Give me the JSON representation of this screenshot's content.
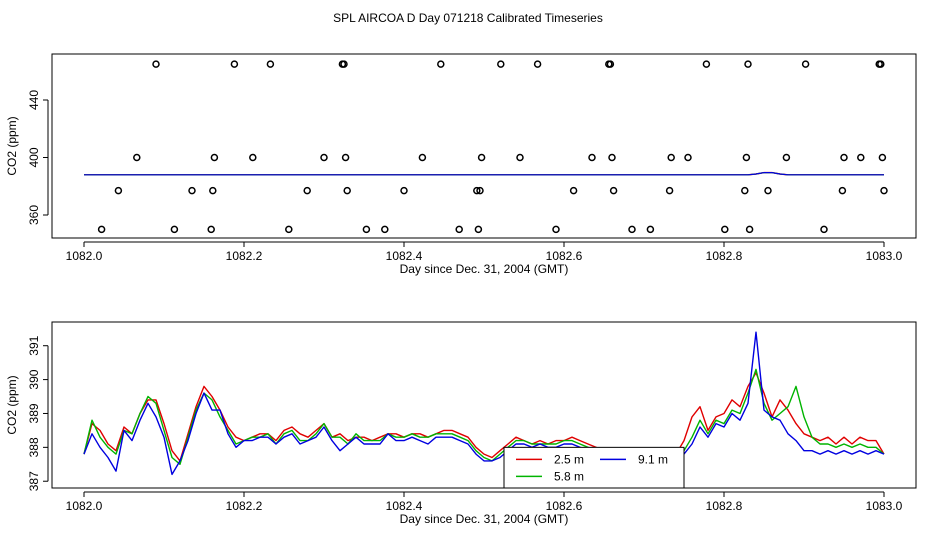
{
  "chart_data": {
    "title": "SPL AIRCOA D  Day 071218  Calibrated Timeseries",
    "series_colors": {
      "2.5 m": "#e00000",
      "5.8 m": "#00b400",
      "9.1 m": "#0000e0",
      "markers": "#000000"
    },
    "panels": [
      {
        "type": "scatter+line",
        "xlabel": "Day since Dec. 31, 2004 (GMT)",
        "ylabel": "CO2 (ppm)",
        "xlim": [
          1081.96,
          1083.04
        ],
        "ylim": [
          344,
          472
        ],
        "xticks": [
          "1082.0",
          "1082.2",
          "1082.4",
          "1082.6",
          "1082.8",
          "1083.0"
        ],
        "xtick_values": [
          1082.0,
          1082.2,
          1082.4,
          1082.6,
          1082.8,
          1083.0
        ],
        "yticks": [
          "360",
          "400",
          "440"
        ],
        "ytick_values": [
          360,
          400,
          440
        ],
        "markers_x": [
          1082.022,
          1082.043,
          1082.066,
          1082.09,
          1082.113,
          1082.135,
          1082.159,
          1082.161,
          1082.163,
          1082.188,
          1082.211,
          1082.233,
          1082.256,
          1082.279,
          1082.3,
          1082.323,
          1082.325,
          1082.327,
          1082.329,
          1082.353,
          1082.376,
          1082.4,
          1082.423,
          1082.446,
          1082.469,
          1082.491,
          1082.493,
          1082.495,
          1082.497,
          1082.521,
          1082.545,
          1082.567,
          1082.59,
          1082.612,
          1082.635,
          1082.656,
          1082.658,
          1082.66,
          1082.662,
          1082.685,
          1082.708,
          1082.732,
          1082.734,
          1082.755,
          1082.778,
          1082.801,
          1082.826,
          1082.828,
          1082.83,
          1082.832,
          1082.855,
          1082.878,
          1082.902,
          1082.925,
          1082.948,
          1082.95,
          1082.971,
          1082.994,
          1082.996,
          1082.998,
          1083.0
        ],
        "markers_y": [
          350,
          377,
          400,
          465,
          350,
          377,
          350,
          377,
          400,
          465,
          400,
          465,
          350,
          377,
          400,
          465,
          465,
          400,
          377,
          350,
          350,
          377,
          400,
          465,
          350,
          377,
          350,
          377,
          400,
          465,
          400,
          465,
          350,
          377,
          400,
          465,
          465,
          400,
          377,
          350,
          350,
          377,
          400,
          400,
          465,
          350,
          377,
          400,
          465,
          350,
          377,
          400,
          465,
          350,
          377,
          400,
          400,
          465,
          465,
          400,
          377
        ],
        "line_y": 388,
        "bump_x": 1082.855,
        "bump_y": 390
      },
      {
        "type": "line",
        "xlabel": "Day since Dec. 31, 2004 (GMT)",
        "ylabel": "CO2 (ppm)",
        "xlim": [
          1081.96,
          1083.04
        ],
        "ylim": [
          386.8,
          391.7
        ],
        "xticks": [
          "1082.0",
          "1082.2",
          "1082.4",
          "1082.6",
          "1082.8",
          "1083.0"
        ],
        "xtick_values": [
          1082.0,
          1082.2,
          1082.4,
          1082.6,
          1082.8,
          1083.0
        ],
        "yticks": [
          "387",
          "388",
          "389",
          "390",
          "391"
        ],
        "ytick_values": [
          387,
          388,
          389,
          390,
          391
        ],
        "legend_entries": [
          "2.5 m",
          "5.8 m",
          "9.1 m"
        ],
        "legend_location": "lower-center",
        "series": [
          {
            "name": "2.5 m",
            "x": [
              1082.0,
              1082.01,
              1082.02,
              1082.03,
              1082.04,
              1082.05,
              1082.06,
              1082.07,
              1082.08,
              1082.09,
              1082.1,
              1082.11,
              1082.12,
              1082.13,
              1082.14,
              1082.15,
              1082.16,
              1082.17,
              1082.18,
              1082.19,
              1082.2,
              1082.21,
              1082.22,
              1082.23,
              1082.24,
              1082.25,
              1082.26,
              1082.27,
              1082.28,
              1082.29,
              1082.3,
              1082.31,
              1082.32,
              1082.33,
              1082.34,
              1082.35,
              1082.36,
              1082.37,
              1082.38,
              1082.39,
              1082.4,
              1082.41,
              1082.42,
              1082.43,
              1082.44,
              1082.45,
              1082.46,
              1082.47,
              1082.48,
              1082.49,
              1082.5,
              1082.51,
              1082.52,
              1082.53,
              1082.54,
              1082.55,
              1082.56,
              1082.57,
              1082.58,
              1082.59,
              1082.6,
              1082.61,
              1082.62,
              1082.63,
              1082.64,
              1082.65,
              1082.66,
              1082.67,
              1082.68,
              1082.69,
              1082.7,
              1082.71,
              1082.72,
              1082.73,
              1082.74,
              1082.75,
              1082.76,
              1082.77,
              1082.78,
              1082.79,
              1082.8,
              1082.81,
              1082.82,
              1082.83,
              1082.84,
              1082.85,
              1082.86,
              1082.87,
              1082.88,
              1082.89,
              1082.9,
              1082.91,
              1082.92,
              1082.93,
              1082.94,
              1082.95,
              1082.96,
              1082.97,
              1082.98,
              1082.99,
              1083.0
            ],
            "values": [
              387.8,
              388.7,
              388.5,
              388.1,
              387.9,
              388.6,
              388.4,
              389.0,
              389.4,
              389.4,
              388.7,
              387.9,
              387.6,
              388.4,
              389.2,
              389.8,
              389.5,
              389.1,
              388.6,
              388.3,
              388.2,
              388.3,
              388.4,
              388.4,
              388.2,
              388.5,
              388.6,
              388.4,
              388.3,
              388.5,
              388.7,
              388.3,
              388.4,
              388.2,
              388.3,
              388.3,
              388.2,
              388.3,
              388.4,
              388.4,
              388.3,
              388.4,
              388.4,
              388.3,
              388.4,
              388.5,
              388.5,
              388.4,
              388.3,
              388.0,
              387.8,
              387.7,
              387.9,
              388.1,
              388.3,
              388.2,
              388.1,
              388.2,
              388.1,
              388.2,
              388.2,
              388.3,
              388.2,
              388.1,
              388.0,
              387.9,
              387.8,
              387.6,
              387.5,
              387.4,
              387.3,
              387.4,
              387.5,
              387.6,
              387.8,
              388.2,
              388.9,
              389.2,
              388.5,
              388.9,
              389.0,
              389.4,
              389.2,
              389.8,
              390.2,
              389.6,
              388.9,
              389.4,
              389.1,
              388.7,
              388.4,
              388.3,
              388.2,
              388.3,
              388.1,
              388.3,
              388.1,
              388.3,
              388.2,
              388.2,
              387.8
            ]
          },
          {
            "name": "5.8 m",
            "x": [
              1082.0,
              1082.01,
              1082.02,
              1082.03,
              1082.04,
              1082.05,
              1082.06,
              1082.07,
              1082.08,
              1082.09,
              1082.1,
              1082.11,
              1082.12,
              1082.13,
              1082.14,
              1082.15,
              1082.16,
              1082.17,
              1082.18,
              1082.19,
              1082.2,
              1082.21,
              1082.22,
              1082.23,
              1082.24,
              1082.25,
              1082.26,
              1082.27,
              1082.28,
              1082.29,
              1082.3,
              1082.31,
              1082.32,
              1082.33,
              1082.34,
              1082.35,
              1082.36,
              1082.37,
              1082.38,
              1082.39,
              1082.4,
              1082.41,
              1082.42,
              1082.43,
              1082.44,
              1082.45,
              1082.46,
              1082.47,
              1082.48,
              1082.49,
              1082.5,
              1082.51,
              1082.52,
              1082.53,
              1082.54,
              1082.55,
              1082.56,
              1082.57,
              1082.58,
              1082.59,
              1082.6,
              1082.61,
              1082.62,
              1082.63,
              1082.64,
              1082.65,
              1082.66,
              1082.67,
              1082.68,
              1082.69,
              1082.7,
              1082.71,
              1082.72,
              1082.73,
              1082.74,
              1082.75,
              1082.76,
              1082.77,
              1082.78,
              1082.79,
              1082.8,
              1082.81,
              1082.82,
              1082.83,
              1082.84,
              1082.85,
              1082.86,
              1082.87,
              1082.88,
              1082.89,
              1082.9,
              1082.91,
              1082.92,
              1082.93,
              1082.94,
              1082.95,
              1082.96,
              1082.97,
              1082.98,
              1082.99,
              1083.0
            ],
            "values": [
              387.8,
              388.8,
              388.3,
              388.0,
              387.8,
              388.5,
              388.4,
              389.0,
              389.5,
              389.3,
              388.5,
              387.7,
              387.5,
              388.3,
              389.1,
              389.6,
              389.4,
              388.9,
              388.5,
              388.1,
              388.2,
              388.3,
              388.3,
              388.4,
              388.1,
              388.4,
              388.5,
              388.2,
              388.2,
              388.4,
              388.7,
              388.3,
              388.3,
              388.1,
              388.4,
              388.2,
              388.2,
              388.2,
              388.4,
              388.3,
              388.3,
              388.4,
              388.3,
              388.3,
              388.4,
              388.4,
              388.4,
              388.3,
              388.2,
              387.9,
              387.7,
              387.6,
              387.8,
              388.0,
              388.2,
              388.2,
              388.1,
              388.1,
              388.1,
              388.1,
              388.2,
              388.2,
              388.1,
              388.0,
              387.9,
              387.8,
              387.7,
              387.5,
              387.4,
              387.3,
              387.2,
              387.3,
              387.4,
              387.5,
              387.7,
              387.9,
              388.3,
              388.8,
              388.4,
              388.8,
              388.7,
              389.1,
              389.0,
              389.6,
              390.3,
              389.3,
              388.8,
              389.0,
              389.2,
              389.8,
              388.9,
              388.3,
              388.1,
              388.1,
              388.0,
              388.1,
              388.0,
              388.1,
              388.0,
              388.0,
              387.8
            ]
          },
          {
            "name": "9.1 m",
            "x": [
              1082.0,
              1082.01,
              1082.02,
              1082.03,
              1082.04,
              1082.05,
              1082.06,
              1082.07,
              1082.08,
              1082.09,
              1082.1,
              1082.11,
              1082.12,
              1082.13,
              1082.14,
              1082.15,
              1082.16,
              1082.17,
              1082.18,
              1082.19,
              1082.2,
              1082.21,
              1082.22,
              1082.23,
              1082.24,
              1082.25,
              1082.26,
              1082.27,
              1082.28,
              1082.29,
              1082.3,
              1082.31,
              1082.32,
              1082.33,
              1082.34,
              1082.35,
              1082.36,
              1082.37,
              1082.38,
              1082.39,
              1082.4,
              1082.41,
              1082.42,
              1082.43,
              1082.44,
              1082.45,
              1082.46,
              1082.47,
              1082.48,
              1082.49,
              1082.5,
              1082.51,
              1082.52,
              1082.53,
              1082.54,
              1082.55,
              1082.56,
              1082.57,
              1082.58,
              1082.59,
              1082.6,
              1082.61,
              1082.62,
              1082.63,
              1082.64,
              1082.65,
              1082.66,
              1082.67,
              1082.68,
              1082.69,
              1082.7,
              1082.71,
              1082.72,
              1082.73,
              1082.74,
              1082.75,
              1082.76,
              1082.77,
              1082.78,
              1082.79,
              1082.8,
              1082.81,
              1082.82,
              1082.83,
              1082.84,
              1082.85,
              1082.86,
              1082.87,
              1082.88,
              1082.89,
              1082.9,
              1082.91,
              1082.92,
              1082.93,
              1082.94,
              1082.95,
              1082.96,
              1082.97,
              1082.98,
              1082.99,
              1083.0
            ],
            "values": [
              387.8,
              388.4,
              388.0,
              387.7,
              387.3,
              388.5,
              388.2,
              388.8,
              389.3,
              388.9,
              388.3,
              387.2,
              387.6,
              388.2,
              389.0,
              389.6,
              389.1,
              389.1,
              388.4,
              388.0,
              388.2,
              388.2,
              388.3,
              388.3,
              388.1,
              388.3,
              388.4,
              388.1,
              388.2,
              388.3,
              388.6,
              388.2,
              387.9,
              388.1,
              388.3,
              388.1,
              388.1,
              388.1,
              388.4,
              388.2,
              388.2,
              388.3,
              388.2,
              388.1,
              388.3,
              388.3,
              388.3,
              388.2,
              388.1,
              387.8,
              387.6,
              387.6,
              387.7,
              387.9,
              388.1,
              388.1,
              388.0,
              388.1,
              388.0,
              388.0,
              388.1,
              388.1,
              388.0,
              387.9,
              387.8,
              387.7,
              387.6,
              387.4,
              387.3,
              387.2,
              387.1,
              387.2,
              387.3,
              387.4,
              387.6,
              387.8,
              388.1,
              388.6,
              388.3,
              388.7,
              388.6,
              389.0,
              388.8,
              389.3,
              391.4,
              389.1,
              388.9,
              388.8,
              388.4,
              388.2,
              387.9,
              387.9,
              387.8,
              387.9,
              387.8,
              387.9,
              387.8,
              387.9,
              387.8,
              387.9,
              387.8
            ]
          }
        ]
      }
    ]
  }
}
